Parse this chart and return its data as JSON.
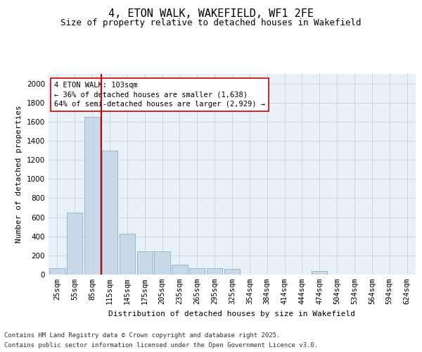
{
  "title_line1": "4, ETON WALK, WAKEFIELD, WF1 2FE",
  "title_line2": "Size of property relative to detached houses in Wakefield",
  "xlabel": "Distribution of detached houses by size in Wakefield",
  "ylabel": "Number of detached properties",
  "categories": [
    "25sqm",
    "55sqm",
    "85sqm",
    "115sqm",
    "145sqm",
    "175sqm",
    "205sqm",
    "235sqm",
    "265sqm",
    "295sqm",
    "325sqm",
    "354sqm",
    "384sqm",
    "414sqm",
    "444sqm",
    "474sqm",
    "504sqm",
    "534sqm",
    "564sqm",
    "594sqm",
    "624sqm"
  ],
  "values": [
    70,
    650,
    1650,
    1300,
    430,
    240,
    240,
    105,
    65,
    65,
    60,
    0,
    0,
    0,
    0,
    35,
    0,
    0,
    0,
    0,
    0
  ],
  "bar_color": "#c9d9ea",
  "bar_edge_color": "#8ab0cc",
  "vline_color": "#cc0000",
  "vline_pos": 2.5,
  "annotation_text": "4 ETON WALK: 103sqm\n← 36% of detached houses are smaller (1,638)\n64% of semi-detached houses are larger (2,929) →",
  "annotation_box_color": "#ffffff",
  "annotation_box_edge": "#cc0000",
  "ylim": [
    0,
    2100
  ],
  "yticks": [
    0,
    200,
    400,
    600,
    800,
    1000,
    1200,
    1400,
    1600,
    1800,
    2000
  ],
  "grid_color": "#c8d0e0",
  "background_color": "#e8f0f8",
  "footer_line1": "Contains HM Land Registry data © Crown copyright and database right 2025.",
  "footer_line2": "Contains public sector information licensed under the Open Government Licence v3.0.",
  "title_fontsize": 11,
  "subtitle_fontsize": 9,
  "axis_label_fontsize": 8,
  "tick_fontsize": 7.5,
  "annotation_fontsize": 7.5,
  "footer_fontsize": 6.5
}
